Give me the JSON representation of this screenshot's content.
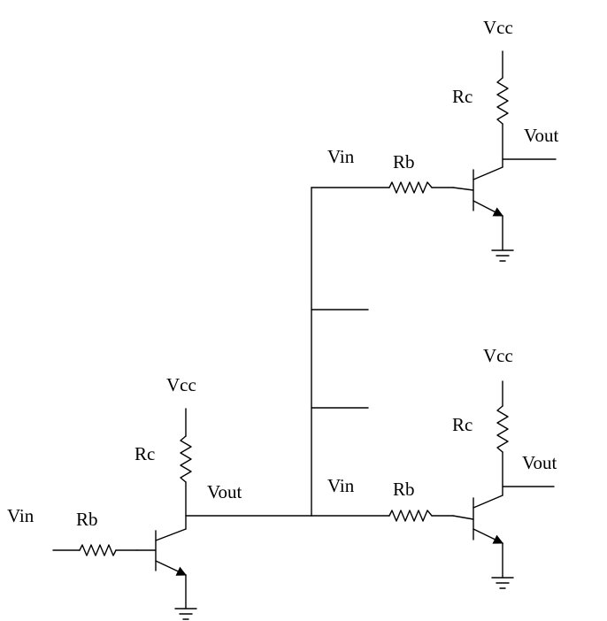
{
  "labels": {
    "vin": "Vin",
    "rb": "Rb",
    "rc": "Rc",
    "vcc": "Vcc",
    "vout": "Vout"
  },
  "colors": {
    "line": "#000000",
    "background": "#ffffff"
  }
}
